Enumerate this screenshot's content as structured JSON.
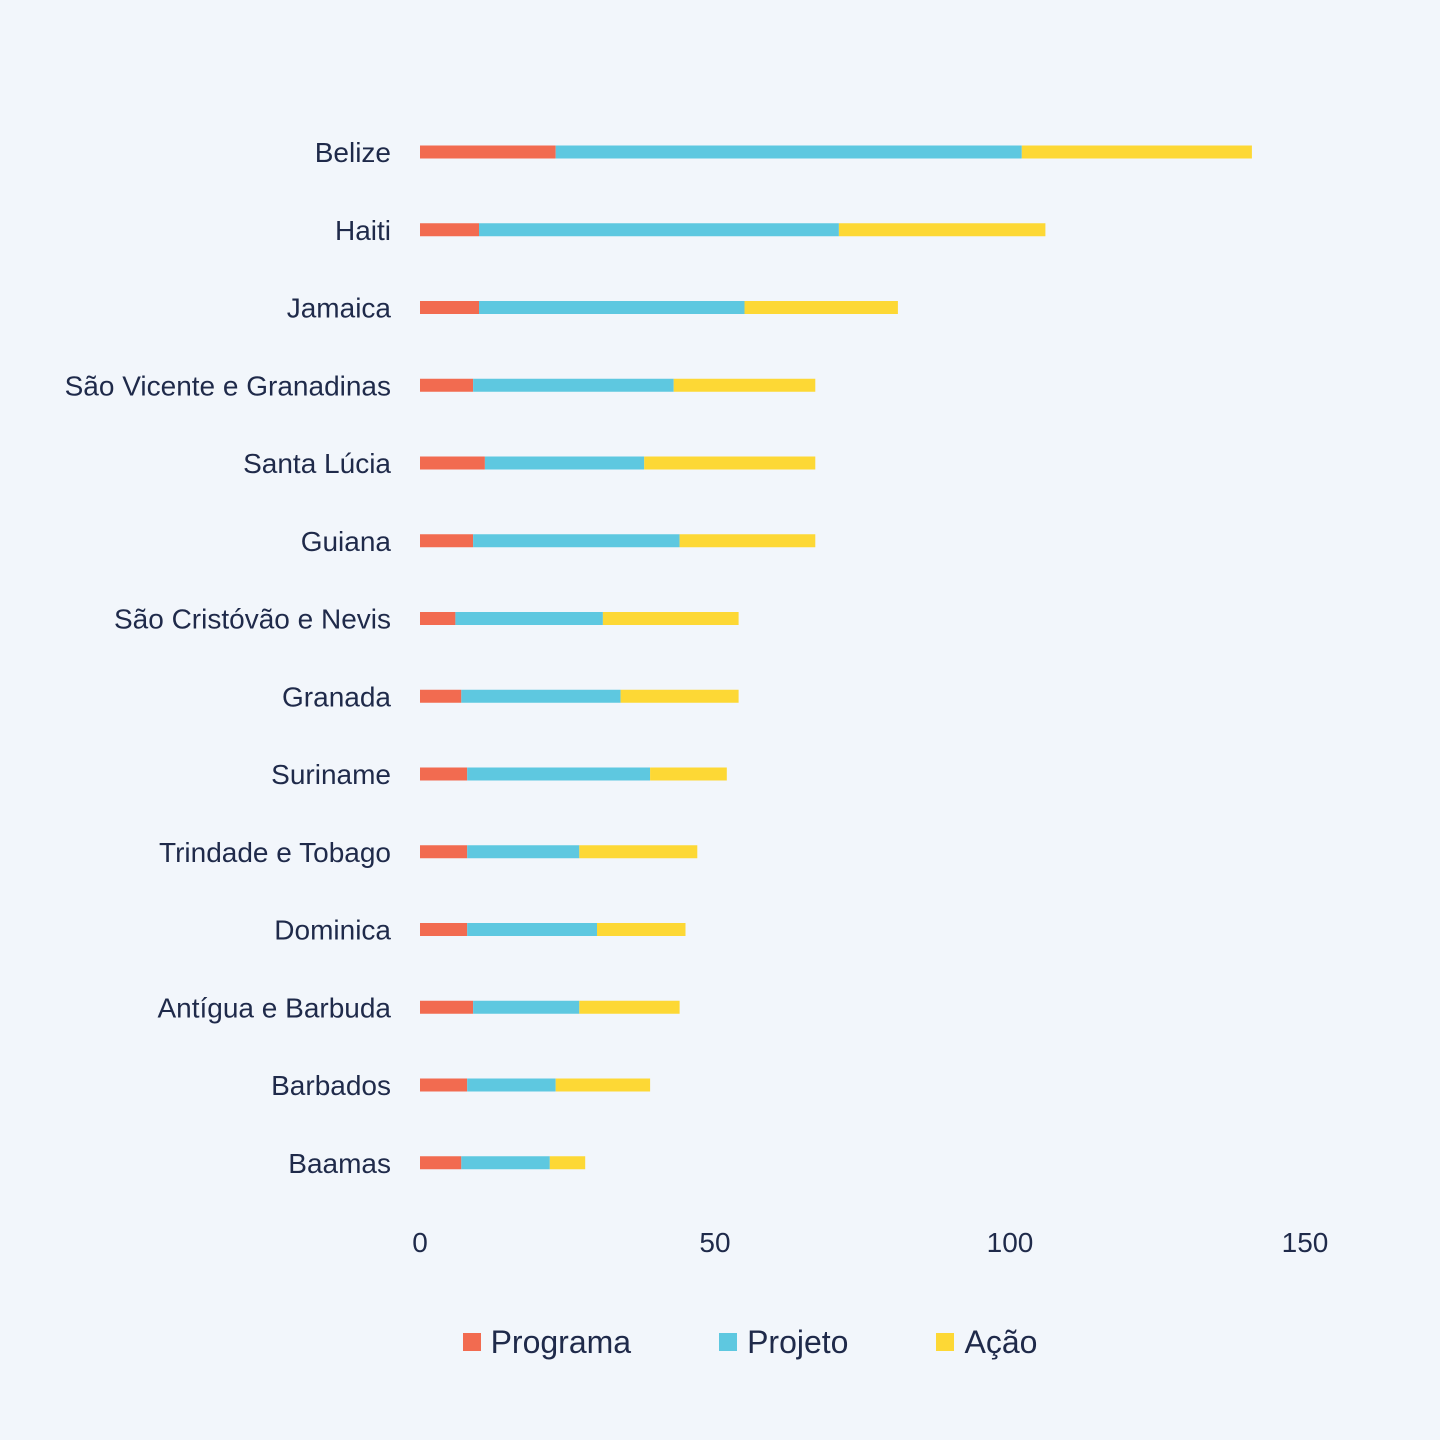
{
  "chart_data": {
    "type": "bar",
    "orientation": "horizontal",
    "stacked": true,
    "categories": [
      "Belize",
      "Haiti",
      "Jamaica",
      "São Vicente e Granadinas",
      "Santa Lúcia",
      "Guiana",
      "São Cristóvão e Nevis",
      "Granada",
      "Suriname",
      "Trindade e Tobago",
      "Dominica",
      "Antígua e Barbuda",
      "Barbados",
      "Baamas"
    ],
    "series": [
      {
        "name": "Programa",
        "color": "#f26b50",
        "values": [
          23,
          10,
          10,
          9,
          11,
          9,
          6,
          7,
          8,
          8,
          8,
          9,
          8,
          7
        ]
      },
      {
        "name": "Projeto",
        "color": "#5ec8e0",
        "values": [
          79,
          61,
          45,
          34,
          27,
          35,
          25,
          27,
          31,
          19,
          22,
          18,
          15,
          15
        ]
      },
      {
        "name": "Ação",
        "color": "#fdd835",
        "values": [
          39,
          35,
          26,
          24,
          29,
          23,
          23,
          20,
          13,
          20,
          15,
          17,
          16,
          6
        ]
      }
    ],
    "x_ticks": [
      "0",
      "50",
      "100",
      "150"
    ],
    "xlim": [
      0,
      150
    ],
    "title": "",
    "xlabel": "",
    "ylabel": "",
    "grid": false,
    "legend_position": "bottom",
    "background": "#f2f6fb",
    "text_color": "#1f2a4a"
  }
}
